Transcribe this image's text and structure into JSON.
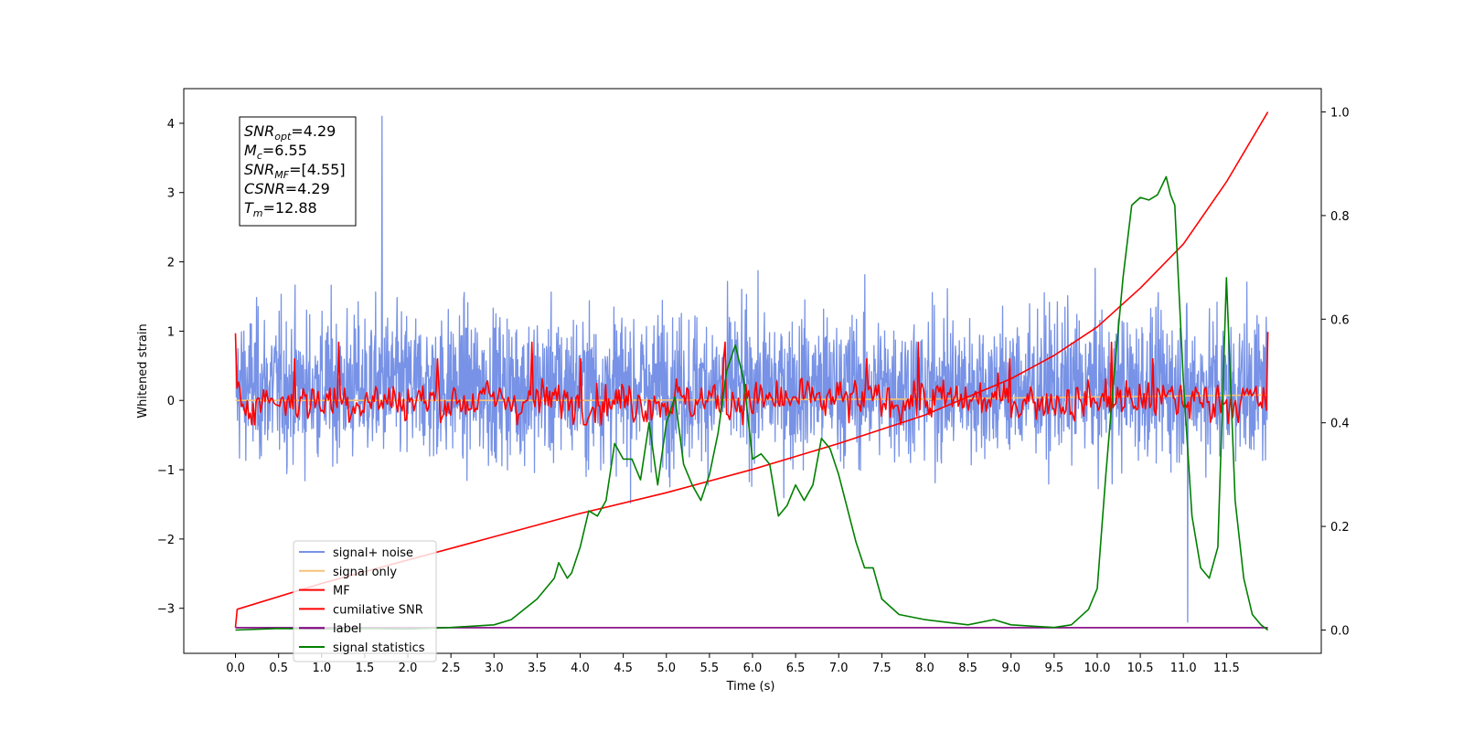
{
  "chart_data": {
    "type": "line",
    "xlabel": "Time (s)",
    "ylabel": "Whitened strain",
    "xlim": [
      -0.6,
      12.6
    ],
    "ylim": [
      -3.65,
      4.5
    ],
    "y2lim": [
      -0.045,
      1.045
    ],
    "x_ticks": [
      "0.0",
      "0.5",
      "1.0",
      "1.5",
      "2.0",
      "2.5",
      "3.0",
      "3.5",
      "4.0",
      "4.5",
      "5.0",
      "5.5",
      "6.0",
      "6.5",
      "7.0",
      "7.5",
      "8.0",
      "8.5",
      "9.0",
      "9.5",
      "10.0",
      "10.5",
      "11.0",
      "11.5"
    ],
    "y_ticks": [
      "4",
      "3",
      "2",
      "1",
      "0",
      "−1",
      "−2",
      "−3"
    ],
    "y2_ticks": [
      "1.0",
      "0.8",
      "0.6",
      "0.4",
      "0.2",
      "0.0"
    ],
    "grid": false,
    "legend_position": "lower-left",
    "series": [
      {
        "name": "signal+ noise",
        "color": "#7792e6",
        "axis": "left",
        "kind": "noise",
        "x_range": [
          0,
          11.98
        ],
        "band": [
          -1.5,
          2.2
        ],
        "max_spike": 4.17,
        "min_spike": -3.22
      },
      {
        "name": "signal only",
        "color": "#f5c27a",
        "axis": "left",
        "x": [
          0,
          4,
          8,
          10,
          11.98
        ],
        "y": [
          0.0,
          0.0,
          0.02,
          0.05,
          0.08
        ]
      },
      {
        "name": "MF",
        "color": "#ff0000",
        "axis": "left",
        "kind": "mf",
        "x_range": [
          0,
          11.98
        ],
        "start": 0.97,
        "end": 0.99,
        "band": [
          -0.35,
          0.84
        ]
      },
      {
        "name": "cumilative SNR",
        "color": "#ff0000",
        "axis": "right",
        "x": [
          0,
          0.02,
          1,
          2,
          3,
          4,
          5,
          6,
          7,
          8,
          9,
          9.5,
          10,
          10.5,
          11,
          11.5,
          11.98
        ],
        "y": [
          0.005,
          0.04,
          0.09,
          0.135,
          0.18,
          0.225,
          0.265,
          0.31,
          0.36,
          0.415,
          0.485,
          0.53,
          0.585,
          0.66,
          0.745,
          0.865,
          1.0
        ]
      },
      {
        "name": "label",
        "color": "#800080",
        "axis": "left",
        "x": [
          0,
          11.98
        ],
        "y": [
          -3.28,
          -3.28
        ]
      },
      {
        "name": "signal statistics",
        "color": "#008000",
        "axis": "right",
        "x": [
          0,
          0.5,
          1,
          1.5,
          2,
          2.5,
          3,
          3.2,
          3.5,
          3.7,
          3.75,
          3.85,
          3.9,
          4.0,
          4.1,
          4.2,
          4.3,
          4.4,
          4.5,
          4.6,
          4.7,
          4.8,
          4.9,
          5.0,
          5.1,
          5.2,
          5.3,
          5.4,
          5.5,
          5.6,
          5.7,
          5.8,
          5.9,
          6.0,
          6.1,
          6.2,
          6.3,
          6.4,
          6.5,
          6.6,
          6.7,
          6.8,
          6.9,
          7.0,
          7.2,
          7.3,
          7.4,
          7.5,
          7.7,
          8.0,
          8.5,
          8.8,
          9.0,
          9.5,
          9.7,
          9.9,
          10.0,
          10.1,
          10.2,
          10.3,
          10.4,
          10.5,
          10.6,
          10.7,
          10.8,
          10.85,
          10.9,
          11.0,
          11.1,
          11.2,
          11.3,
          11.4,
          11.5,
          11.6,
          11.7,
          11.8,
          11.9,
          11.98
        ],
        "y": [
          0.0,
          0.003,
          0.002,
          0.003,
          0.002,
          0.005,
          0.01,
          0.02,
          0.06,
          0.1,
          0.13,
          0.1,
          0.11,
          0.16,
          0.23,
          0.22,
          0.25,
          0.36,
          0.33,
          0.33,
          0.29,
          0.4,
          0.28,
          0.4,
          0.45,
          0.32,
          0.28,
          0.25,
          0.3,
          0.38,
          0.5,
          0.55,
          0.48,
          0.33,
          0.34,
          0.32,
          0.22,
          0.24,
          0.28,
          0.25,
          0.28,
          0.37,
          0.35,
          0.3,
          0.17,
          0.12,
          0.12,
          0.06,
          0.03,
          0.02,
          0.01,
          0.02,
          0.01,
          0.005,
          0.01,
          0.04,
          0.08,
          0.3,
          0.5,
          0.68,
          0.82,
          0.835,
          0.83,
          0.84,
          0.875,
          0.84,
          0.82,
          0.48,
          0.22,
          0.12,
          0.1,
          0.16,
          0.68,
          0.25,
          0.1,
          0.03,
          0.01,
          0.0
        ]
      }
    ]
  },
  "annotation": {
    "lines": [
      {
        "main": "SNR",
        "sub": "opt",
        "value": "=4.29"
      },
      {
        "main": "M",
        "sub": "c",
        "value": "=6.55"
      },
      {
        "main": "SNR",
        "sub": "MF",
        "value": "=[4.55]"
      },
      {
        "main": "CSNR",
        "sub": "",
        "value": "=4.29"
      },
      {
        "main": "T",
        "sub": "m",
        "value": "=12.88"
      }
    ]
  }
}
